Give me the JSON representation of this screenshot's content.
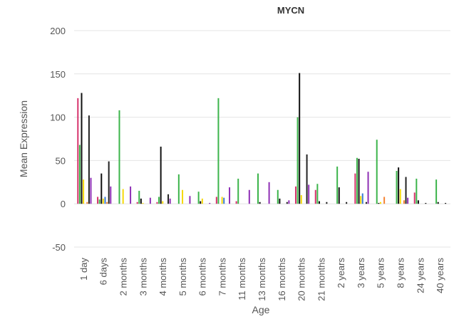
{
  "chart_data": {
    "type": "bar",
    "title": "MYCN",
    "x_label": "Age",
    "y_label": "Mean Expression",
    "categories": [
      "1 day",
      "6 days",
      "2 months",
      "3 months",
      "4 months",
      "5 months",
      "6 months",
      "7 months",
      "11 months",
      "13 months",
      "16 months",
      "20 months",
      "21 months",
      "2 years",
      "3 years",
      "5 years",
      "8 years",
      "24 years",
      "40 years"
    ],
    "series": [
      {
        "color": "#d6336c",
        "values": [
          122,
          8,
          null,
          2,
          2,
          null,
          null,
          8,
          3,
          null,
          null,
          20,
          16,
          null,
          35,
          null,
          null,
          13,
          null
        ]
      },
      {
        "color": "#3cb44b",
        "values": [
          68,
          5,
          108,
          15,
          8,
          34,
          14,
          122,
          29,
          35,
          16,
          100,
          23,
          43,
          53,
          74,
          38,
          29,
          28
        ]
      },
      {
        "color": "#111111",
        "values": [
          128,
          35,
          null,
          6,
          66,
          null,
          3,
          null,
          null,
          2,
          6,
          151,
          3,
          19,
          52,
          1,
          42,
          4,
          2
        ]
      },
      {
        "color": "#f5d90a",
        "values": [
          28,
          6,
          17,
          1,
          3,
          16,
          6,
          8,
          null,
          null,
          null,
          10,
          null,
          null,
          9,
          2,
          17,
          null,
          null
        ]
      },
      {
        "color": "#3a7bd5",
        "values": [
          null,
          8,
          null,
          null,
          null,
          null,
          null,
          7,
          null,
          null,
          null,
          null,
          null,
          null,
          12,
          null,
          null,
          null,
          null
        ]
      },
      {
        "color": "#f58231",
        "values": [
          2,
          2,
          null,
          null,
          null,
          null,
          null,
          null,
          null,
          null,
          null,
          null,
          null,
          null,
          null,
          8,
          4,
          null,
          null
        ]
      },
      {
        "color": "#222222",
        "values": [
          102,
          49,
          null,
          null,
          11,
          null,
          null,
          null,
          null,
          null,
          2,
          57,
          2,
          2,
          2,
          null,
          31,
          1,
          1
        ]
      },
      {
        "color": "#8e2fb5",
        "values": [
          30,
          20,
          20,
          7,
          6,
          9,
          1,
          19,
          16,
          25,
          4,
          22,
          null,
          null,
          37,
          null,
          7,
          null,
          null
        ]
      }
    ],
    "ylim": [
      -50,
      200
    ],
    "yticks": [
      -50,
      0,
      50,
      100,
      150,
      200
    ],
    "grid": true
  }
}
